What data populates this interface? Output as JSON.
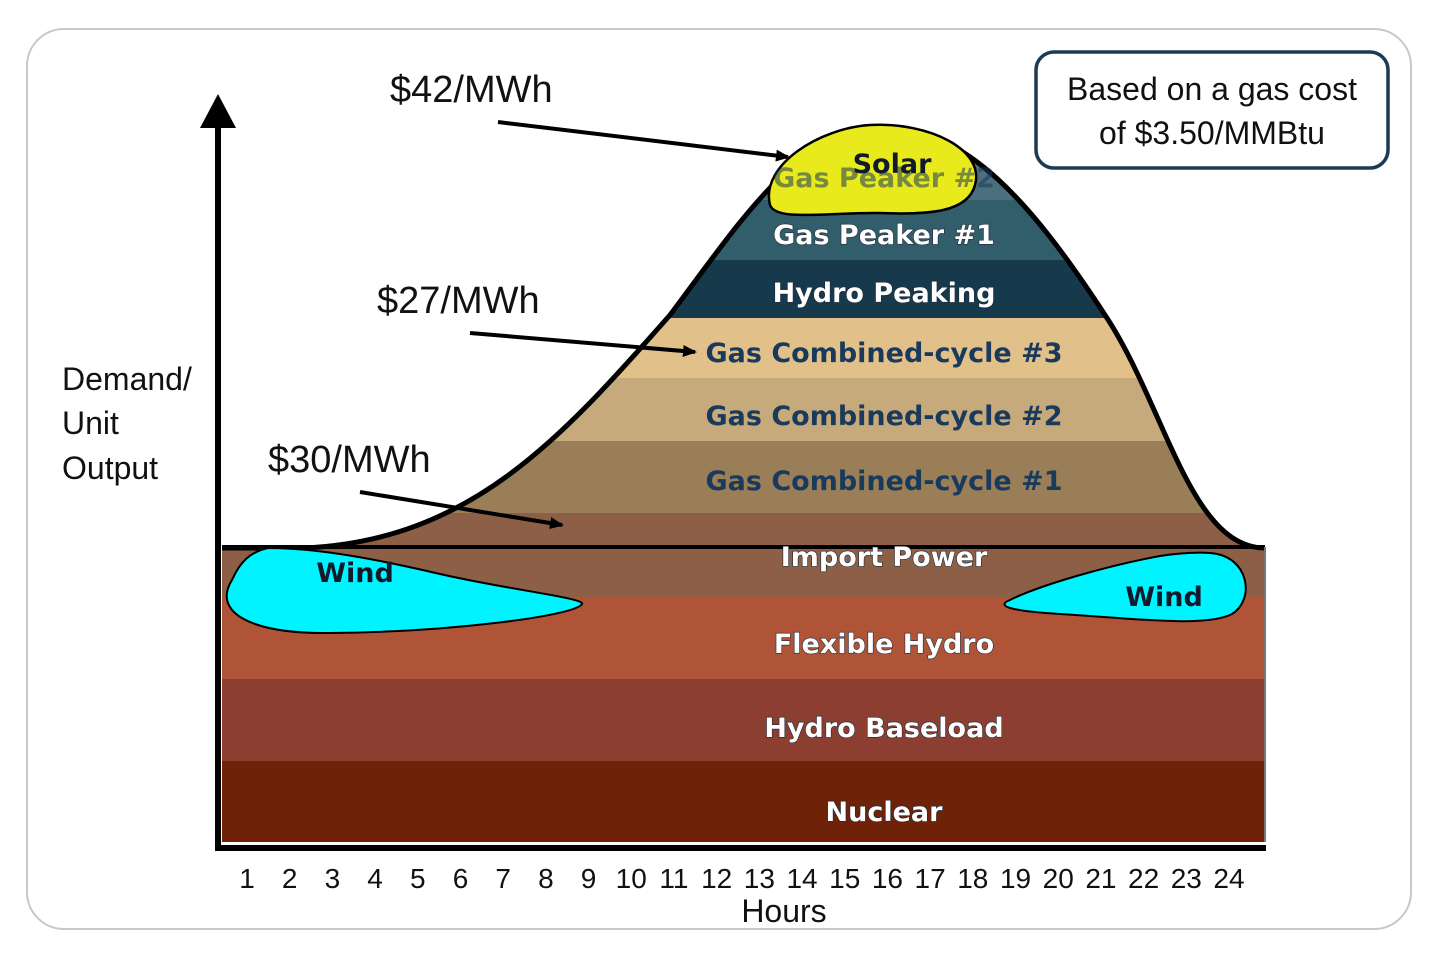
{
  "axes": {
    "y_title_lines": [
      "Demand/",
      "Unit",
      "Output"
    ],
    "x_title": "Hours",
    "x_ticks": [
      "1",
      "2",
      "3",
      "4",
      "5",
      "6",
      "7",
      "8",
      "9",
      "10",
      "11",
      "12",
      "13",
      "14",
      "15",
      "16",
      "17",
      "18",
      "19",
      "20",
      "21",
      "22",
      "23",
      "24"
    ]
  },
  "note": {
    "lines": [
      "Based on a gas cost",
      "of $3.50/MMBtu"
    ]
  },
  "annotations": {
    "price_peak": "$42/MWh",
    "price_mid": "$27/MWh",
    "price_low": "$30/MWh"
  },
  "layers": [
    {
      "label": "Gas Peaker #2",
      "color": "#4d6e7d"
    },
    {
      "label": "Gas Peaker #1",
      "color": "#325d6b"
    },
    {
      "label": "Hydro Peaking",
      "color": "#16394b"
    },
    {
      "label": "Gas Combined-cycle #3",
      "color": "#e2c08a"
    },
    {
      "label": "Gas Combined-cycle #2",
      "color": "#c7aa7b"
    },
    {
      "label": "Gas Combined-cycle #1",
      "color": "#9a7e58"
    },
    {
      "label": "Import Power",
      "color": "#8c5f46"
    },
    {
      "label": "Flexible Hydro",
      "color": "#b05438"
    },
    {
      "label": "Hydro Baseload",
      "color": "#8c3f30"
    },
    {
      "label": "Nuclear",
      "color": "#6f2208"
    }
  ],
  "overlays": {
    "solar": {
      "label": "Solar",
      "color": "#e8ea1c"
    },
    "wind_left": {
      "label": "Wind",
      "color": "#00f4ff"
    },
    "wind_right": {
      "label": "Wind",
      "color": "#00f4ff"
    }
  }
}
